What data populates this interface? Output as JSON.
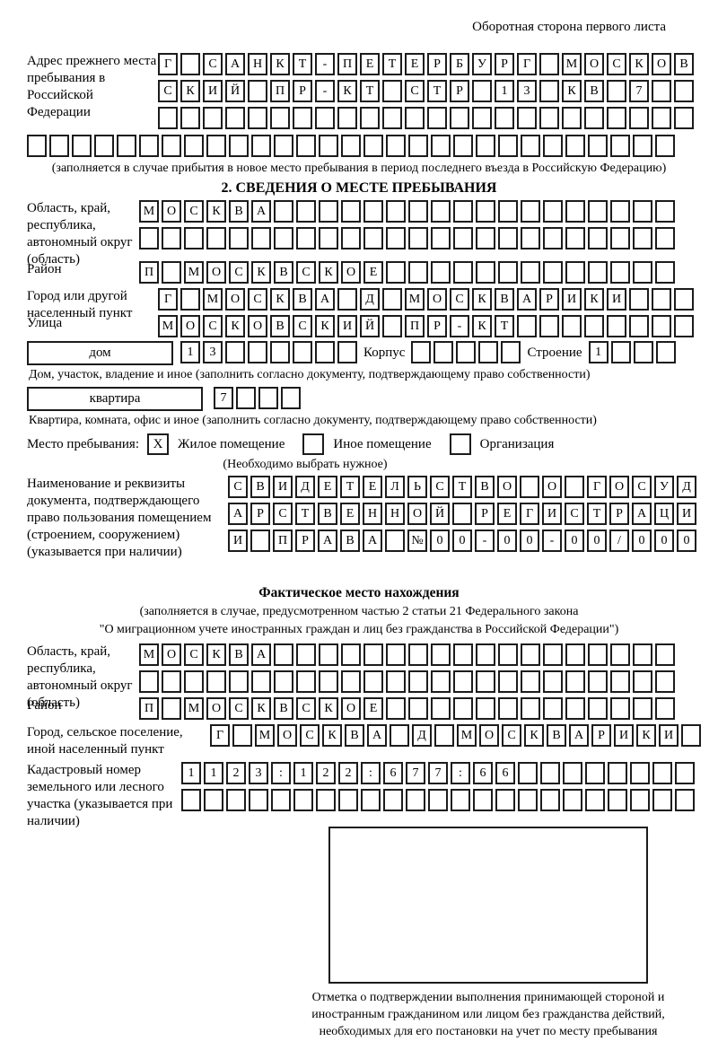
{
  "page": {
    "header_note": "Оборотная сторона первого листа",
    "section2_title": "2. СВЕДЕНИЯ О МЕСТЕ ПРЕБЫВАНИЯ"
  },
  "prev_address": {
    "label": "Адрес прежнего места пребывания в Российской Федерации",
    "rows": [
      [
        "Г",
        "",
        "С",
        "А",
        "Н",
        "К",
        "Т",
        "-",
        "П",
        "Е",
        "Т",
        "Е",
        "Р",
        "Б",
        "У",
        "Р",
        "Г",
        "",
        "М",
        "О",
        "С",
        "К",
        "О",
        "В"
      ],
      [
        "С",
        "К",
        "И",
        "Й",
        "",
        "П",
        "Р",
        "-",
        "К",
        "Т",
        "",
        "С",
        "Т",
        "Р",
        "",
        "1",
        "3",
        "",
        "К",
        "В",
        "",
        "7",
        "",
        ""
      ],
      [
        "",
        "",
        "",
        "",
        "",
        "",
        "",
        "",
        "",
        "",
        "",
        "",
        "",
        "",
        "",
        "",
        "",
        "",
        "",
        "",
        "",
        "",
        "",
        ""
      ]
    ],
    "overflow_row": [
      "",
      "",
      "",
      "",
      "",
      "",
      "",
      "",
      "",
      "",
      "",
      "",
      "",
      "",
      "",
      "",
      "",
      "",
      "",
      "",
      "",
      "",
      "",
      "",
      "",
      "",
      "",
      "",
      ""
    ],
    "note": "(заполняется в случае прибытия в новое место пребывания в период последнего въезда в Российскую Федерацию)"
  },
  "stay": {
    "region": {
      "label": "Область, край, республика, автономный округ (область)",
      "rows": [
        [
          "М",
          "О",
          "С",
          "К",
          "В",
          "А",
          "",
          "",
          "",
          "",
          "",
          "",
          "",
          "",
          "",
          "",
          "",
          "",
          "",
          "",
          "",
          "",
          "",
          ""
        ],
        [
          "",
          "",
          "",
          "",
          "",
          "",
          "",
          "",
          "",
          "",
          "",
          "",
          "",
          "",
          "",
          "",
          "",
          "",
          "",
          "",
          "",
          "",
          "",
          ""
        ]
      ]
    },
    "district": {
      "label": "Район",
      "row": [
        "П",
        "",
        "М",
        "О",
        "С",
        "К",
        "В",
        "С",
        "К",
        "О",
        "Е",
        "",
        "",
        "",
        "",
        "",
        "",
        "",
        "",
        "",
        "",
        "",
        "",
        ""
      ]
    },
    "city": {
      "label": "Город или другой населенный пункт",
      "row": [
        "Г",
        "",
        "М",
        "О",
        "С",
        "К",
        "В",
        "А",
        "",
        "Д",
        "",
        "М",
        "О",
        "С",
        "К",
        "В",
        "А",
        "Р",
        "И",
        "К",
        "И",
        "",
        "",
        ""
      ]
    },
    "street": {
      "label": "Улица",
      "row": [
        "М",
        "О",
        "С",
        "К",
        "О",
        "В",
        "С",
        "К",
        "И",
        "Й",
        "",
        "П",
        "Р",
        "-",
        "К",
        "Т",
        "",
        "",
        "",
        "",
        "",
        "",
        "",
        ""
      ]
    },
    "house": {
      "box_label": "дом",
      "cells": [
        "1",
        "3",
        "",
        "",
        "",
        "",
        "",
        ""
      ],
      "korpus_label": "Корпус",
      "korpus_cells": [
        "",
        "",
        "",
        "",
        ""
      ],
      "stroenie_label": "Строение",
      "stroenie_cells": [
        "1",
        "",
        "",
        ""
      ]
    },
    "house_note": "Дом, участок, владение и иное (заполнить согласно документу, подтверждающему право собственности)",
    "apartment": {
      "box_label": "квартира",
      "cells": [
        "7",
        "",
        "",
        ""
      ]
    },
    "apartment_note": "Квартира, комната, офис и иное (заполнить согласно документу, подтверждающему право собственности)",
    "place_type": {
      "label": "Место пребывания:",
      "options": [
        {
          "label": "Жилое помещение",
          "mark": "X"
        },
        {
          "label": "Иное помещение",
          "mark": ""
        },
        {
          "label": "Организация",
          "mark": ""
        }
      ],
      "note": "(Необходимо выбрать нужное)"
    },
    "document": {
      "label": "Наименование и реквизиты документа, подтверждающего право пользования помещением (строением, сооружением) (указывается при наличии)",
      "rows": [
        [
          "С",
          "В",
          "И",
          "Д",
          "Е",
          "Т",
          "Е",
          "Л",
          "Ь",
          "С",
          "Т",
          "В",
          "О",
          "",
          "О",
          "",
          "Г",
          "О",
          "С",
          "У",
          "Д"
        ],
        [
          "А",
          "Р",
          "С",
          "Т",
          "В",
          "Е",
          "Н",
          "Н",
          "О",
          "Й",
          "",
          "Р",
          "Е",
          "Г",
          "И",
          "С",
          "Т",
          "Р",
          "А",
          "Ц",
          "И"
        ],
        [
          "И",
          "",
          "П",
          "Р",
          "А",
          "В",
          "А",
          "",
          "№",
          "0",
          "0",
          "-",
          "0",
          "0",
          "-",
          "0",
          "0",
          "/",
          "0",
          "0",
          "0"
        ]
      ]
    }
  },
  "actual_location": {
    "title": "Фактическое место нахождения",
    "note_line1": "(заполняется в случае, предусмотренном частью 2 статьи 21 Федерального закона",
    "note_line2": "\"О миграционном учете иностранных граждан и лиц без гражданства в Российской Федерации\")",
    "region": {
      "label": "Область, край, республика, автономный округ (область)",
      "rows": [
        [
          "М",
          "О",
          "С",
          "К",
          "В",
          "А",
          "",
          "",
          "",
          "",
          "",
          "",
          "",
          "",
          "",
          "",
          "",
          "",
          "",
          "",
          "",
          "",
          "",
          ""
        ],
        [
          "",
          "",
          "",
          "",
          "",
          "",
          "",
          "",
          "",
          "",
          "",
          "",
          "",
          "",
          "",
          "",
          "",
          "",
          "",
          "",
          "",
          "",
          "",
          ""
        ]
      ]
    },
    "district": {
      "label": "Район",
      "row": [
        "П",
        "",
        "М",
        "О",
        "С",
        "К",
        "В",
        "С",
        "К",
        "О",
        "Е",
        "",
        "",
        "",
        "",
        "",
        "",
        "",
        "",
        "",
        "",
        "",
        "",
        ""
      ]
    },
    "city": {
      "label": "Город, сельское поселение, иной населенный пункт",
      "row": [
        "Г",
        "",
        "М",
        "О",
        "С",
        "К",
        "В",
        "А",
        "",
        "Д",
        "",
        "М",
        "О",
        "С",
        "К",
        "В",
        "А",
        "Р",
        "И",
        "К",
        "И",
        ""
      ]
    },
    "cadastral": {
      "label": "Кадастровый номер земельного или лесного участка (указывается при наличии)",
      "rows": [
        [
          "1",
          "1",
          "2",
          "3",
          ":",
          "1",
          "2",
          "2",
          ":",
          "6",
          "7",
          "7",
          ":",
          "6",
          "6",
          "",
          "",
          "",
          "",
          "",
          "",
          "",
          ""
        ],
        [
          "",
          "",
          "",
          "",
          "",
          "",
          "",
          "",
          "",
          "",
          "",
          "",
          "",
          "",
          "",
          "",
          "",
          "",
          "",
          "",
          "",
          "",
          ""
        ]
      ]
    },
    "stamp_note": "Отметка о подтверждении выполнения принимающей стороной и иностранным гражданином или лицом без гражданства действий, необходимых для его постановки на учет по месту пребывания"
  }
}
